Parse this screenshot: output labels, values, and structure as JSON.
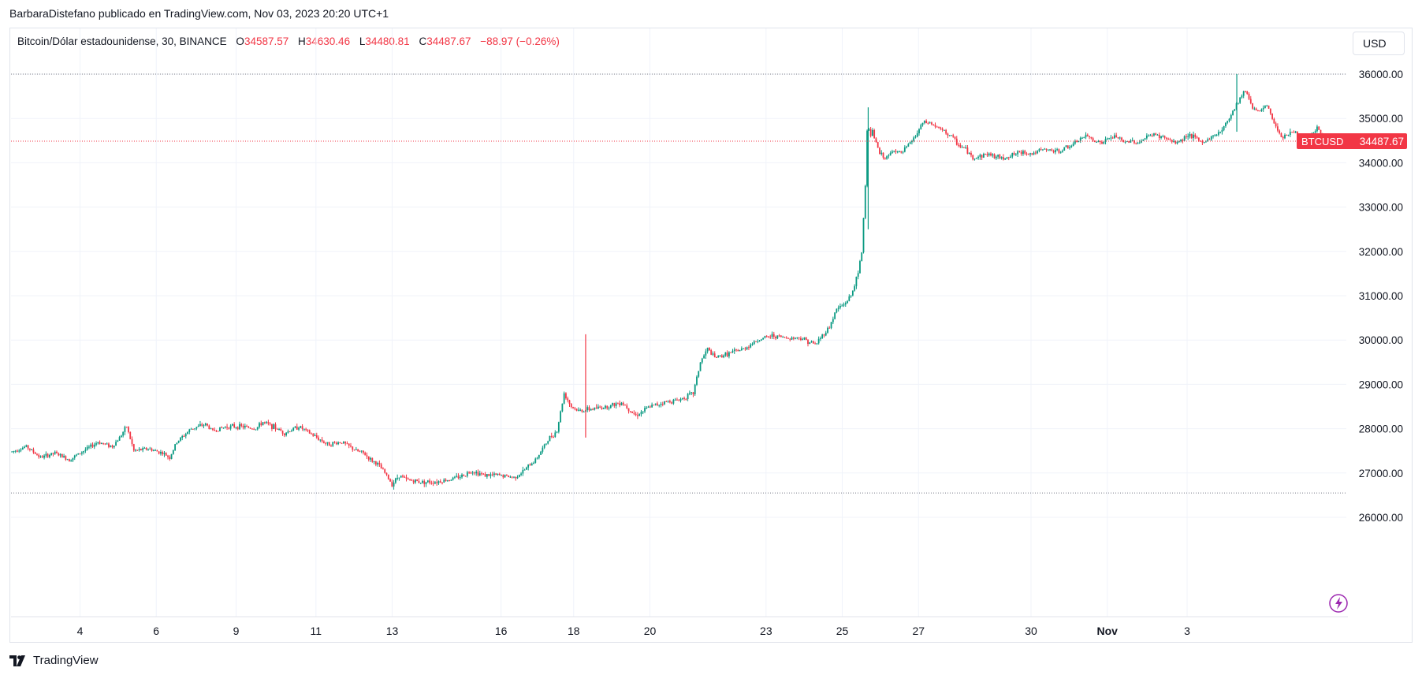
{
  "header": {
    "published_line": "BarbaraDistefano publicado en TradingView.com, Nov 03, 2023 20:20 UTC+1"
  },
  "legend": {
    "symbol": "Bitcoin/Dólar estadounidense, 30, BINANCE",
    "open_label": "O",
    "open": "34587.57",
    "high_label": "H",
    "high": "34630.46",
    "low_label": "L",
    "low": "34480.81",
    "close_label": "C",
    "close": "34487.67",
    "change": "−88.97 (−0.26%)"
  },
  "currency_button": "USD",
  "price_tag": {
    "label": "BTCUSD",
    "value": "34487.67"
  },
  "footer": {
    "brand": "TradingView"
  },
  "colors": {
    "up": "#089981",
    "down": "#f23645",
    "grid": "#f0f3fa",
    "axis_text": "#131722",
    "last_price_line": "#f23645",
    "range_line": "#787b86"
  },
  "icons": {
    "footer_logo": "tradingview-logo-icon",
    "lightning": "lightning-icon"
  },
  "chart_data": {
    "type": "candlestick",
    "symbol": "BTCUSD",
    "interval": "30",
    "y_ticks": [
      "26000.00",
      "27000.00",
      "28000.00",
      "29000.00",
      "30000.00",
      "31000.00",
      "32000.00",
      "33000.00",
      "34000.00",
      "35000.00",
      "36000.00"
    ],
    "x_ticks": [
      "4",
      "6",
      "9",
      "11",
      "13",
      "16",
      "18",
      "20",
      "23",
      "25",
      "27",
      "30",
      "Nov",
      "3"
    ],
    "ylim": [
      25500,
      36600
    ],
    "last_price": 34487.67,
    "range_high": 36000,
    "range_low": 26550,
    "grid": true,
    "price_path": [
      [
        0,
        27480
      ],
      [
        2,
        27600
      ],
      [
        4,
        27350
      ],
      [
        6,
        27450
      ],
      [
        8,
        27300
      ],
      [
        10,
        27500
      ],
      [
        12,
        27700
      ],
      [
        14,
        27600
      ],
      [
        15,
        27800
      ],
      [
        16,
        28050
      ],
      [
        17,
        27500
      ],
      [
        19,
        27550
      ],
      [
        21,
        27450
      ],
      [
        22,
        27350
      ],
      [
        23,
        27700
      ],
      [
        25,
        28000
      ],
      [
        27,
        28100
      ],
      [
        28,
        27950
      ],
      [
        30,
        28050
      ],
      [
        32,
        28050
      ],
      [
        34,
        28000
      ],
      [
        35,
        28150
      ],
      [
        37,
        28000
      ],
      [
        38,
        27900
      ],
      [
        40,
        28050
      ],
      [
        41,
        27950
      ],
      [
        42,
        27850
      ],
      [
        44,
        27650
      ],
      [
        46,
        27700
      ],
      [
        48,
        27500
      ],
      [
        49,
        27450
      ],
      [
        50,
        27300
      ],
      [
        51,
        27200
      ],
      [
        52,
        27000
      ],
      [
        53,
        26750
      ],
      [
        54,
        26950
      ],
      [
        55,
        26850
      ],
      [
        57,
        26800
      ],
      [
        59,
        26800
      ],
      [
        61,
        26850
      ],
      [
        63,
        26950
      ],
      [
        64,
        27050
      ],
      [
        66,
        26950
      ],
      [
        68,
        26950
      ],
      [
        70,
        26900
      ],
      [
        71,
        27000
      ],
      [
        73,
        27300
      ],
      [
        75,
        27800
      ],
      [
        76,
        27950
      ],
      [
        77,
        28800
      ],
      [
        78,
        28500
      ],
      [
        79,
        28400
      ],
      [
        81,
        28450
      ],
      [
        83,
        28500
      ],
      [
        85,
        28600
      ],
      [
        87,
        28300
      ],
      [
        89,
        28500
      ],
      [
        91,
        28600
      ],
      [
        93,
        28650
      ],
      [
        95,
        28800
      ],
      [
        96,
        29500
      ],
      [
        97,
        29800
      ],
      [
        98,
        29600
      ],
      [
        100,
        29700
      ],
      [
        102,
        29800
      ],
      [
        104,
        30000
      ],
      [
        106,
        30100
      ],
      [
        108,
        30050
      ],
      [
        110,
        30050
      ],
      [
        112,
        29900
      ],
      [
        113,
        30100
      ],
      [
        114,
        30300
      ],
      [
        115,
        30700
      ],
      [
        116,
        30800
      ],
      [
        117,
        31000
      ],
      [
        118,
        31500
      ],
      [
        118.5,
        32000
      ],
      [
        119,
        33500
      ],
      [
        119.3,
        35000
      ],
      [
        119.6,
        34600
      ],
      [
        120,
        34700
      ],
      [
        121,
        34200
      ],
      [
        122,
        34100
      ],
      [
        123,
        34300
      ],
      [
        124,
        34200
      ],
      [
        125,
        34400
      ],
      [
        126,
        34600
      ],
      [
        127,
        34900
      ],
      [
        128,
        34900
      ],
      [
        129,
        34800
      ],
      [
        130,
        34700
      ],
      [
        131,
        34600
      ],
      [
        132,
        34400
      ],
      [
        133,
        34300
      ],
      [
        134,
        34100
      ],
      [
        135,
        34150
      ],
      [
        136,
        34200
      ],
      [
        138,
        34100
      ],
      [
        140,
        34200
      ],
      [
        141,
        34250
      ],
      [
        142,
        34200
      ],
      [
        144,
        34300
      ],
      [
        146,
        34250
      ],
      [
        147,
        34350
      ],
      [
        148,
        34400
      ],
      [
        149,
        34550
      ],
      [
        150,
        34600
      ],
      [
        151,
        34500
      ],
      [
        152,
        34450
      ],
      [
        153,
        34550
      ],
      [
        154,
        34600
      ],
      [
        155,
        34450
      ],
      [
        156,
        34500
      ],
      [
        157,
        34450
      ],
      [
        158,
        34550
      ],
      [
        159,
        34650
      ],
      [
        160,
        34600
      ],
      [
        161,
        34550
      ],
      [
        162,
        34450
      ],
      [
        163,
        34500
      ],
      [
        164,
        34650
      ],
      [
        165,
        34550
      ],
      [
        166,
        34450
      ],
      [
        167,
        34550
      ],
      [
        168,
        34650
      ],
      [
        169,
        34800
      ],
      [
        170,
        35100
      ],
      [
        171,
        35400
      ],
      [
        172,
        35650
      ],
      [
        173,
        35250
      ],
      [
        174,
        35150
      ],
      [
        175,
        35300
      ],
      [
        176,
        34900
      ],
      [
        177,
        34600
      ],
      [
        178,
        34650
      ],
      [
        179,
        34700
      ],
      [
        180,
        34400
      ],
      [
        181,
        34550
      ],
      [
        182,
        34800
      ],
      [
        183,
        34490
      ]
    ],
    "spikes": [
      {
        "x": 80,
        "high": 30130,
        "low": 27800
      },
      {
        "x": 119.4,
        "high": 35250,
        "low": 32500
      },
      {
        "x": 170.8,
        "high": 36000,
        "low": 34700
      }
    ],
    "bar_count": 184
  }
}
